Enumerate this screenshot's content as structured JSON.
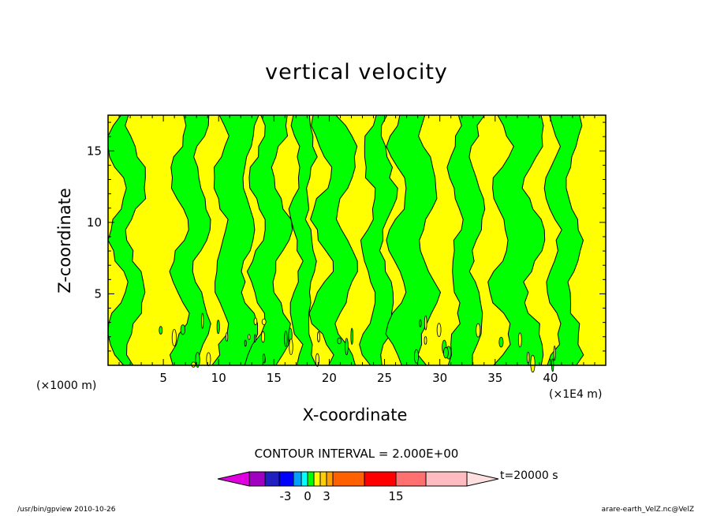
{
  "chart_data": {
    "type": "heatmap",
    "title": "vertical velocity",
    "xlabel": "X-coordinate",
    "ylabel": "Z-coordinate",
    "x_unit_left": "(×1000 m)",
    "x_unit_right": "(×1E4 m)",
    "xlim": [
      0,
      45
    ],
    "ylim": [
      0,
      17.5
    ],
    "xticks": [
      "5",
      "10",
      "15",
      "20",
      "25",
      "30",
      "35",
      "40"
    ],
    "yticks": [
      "5",
      "10",
      "15"
    ],
    "xtick_values": [
      5,
      10,
      15,
      20,
      25,
      30,
      35,
      40
    ],
    "ytick_values": [
      5,
      10,
      15
    ],
    "fill_levels": [
      {
        "name": "negative",
        "color": "#00ff00"
      },
      {
        "name": "positive",
        "color": "#ffff00"
      }
    ],
    "contour_interval": "CONTOUR INTERVAL = 2.000E+00",
    "time_label": "t=20000 s",
    "colorbar": {
      "colors": [
        "#a000c0",
        "#2020c0",
        "#0000ff",
        "#00a0ff",
        "#00ffff",
        "#00ff00",
        "#ffff00",
        "#ffd000",
        "#ffa000",
        "#ff6000",
        "#ff0000",
        "#ff7070",
        "#ffbcc0"
      ],
      "tick_labels": [
        "-3",
        "0",
        "3",
        "15"
      ],
      "left_end_color": "#e000e0",
      "right_end_color": "#ffe0e0"
    }
  },
  "footer": {
    "left": "/usr/bin/gpview   2010-10-26",
    "right": "arare-earth_VelZ.nc@VelZ"
  }
}
